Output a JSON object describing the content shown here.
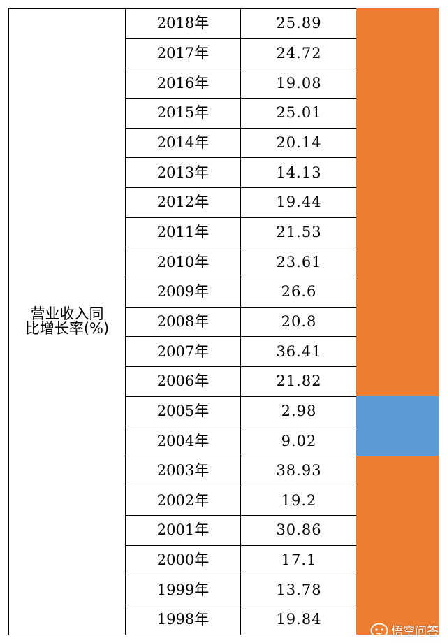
{
  "table": {
    "label_lines": [
      "营业收入同",
      "比增长率(%)"
    ],
    "rows": [
      {
        "year": "2018年",
        "value": "25.89"
      },
      {
        "year": "2017年",
        "value": "24.72"
      },
      {
        "year": "2016年",
        "value": "19.08"
      },
      {
        "year": "2015年",
        "value": "25.01"
      },
      {
        "year": "2014年",
        "value": "20.14"
      },
      {
        "year": "2013年",
        "value": "14.13"
      },
      {
        "year": "2012年",
        "value": "19.44"
      },
      {
        "year": "2011年",
        "value": "21.53"
      },
      {
        "year": "2010年",
        "value": "23.61"
      },
      {
        "year": "2009年",
        "value": "26.6"
      },
      {
        "year": "2008年",
        "value": "20.8"
      },
      {
        "year": "2007年",
        "value": "36.41"
      },
      {
        "year": "2006年",
        "value": "21.82"
      },
      {
        "year": "2005年",
        "value": "2.98"
      },
      {
        "year": "2004年",
        "value": "9.02"
      },
      {
        "year": "2003年",
        "value": "38.93"
      },
      {
        "year": "2002年",
        "value": "19.2"
      },
      {
        "year": "2001年",
        "value": "30.86"
      },
      {
        "year": "2000年",
        "value": "17.1"
      },
      {
        "year": "1999年",
        "value": "13.78"
      },
      {
        "year": "1998年",
        "value": "19.84"
      }
    ]
  },
  "highlight": {
    "segments": [
      {
        "first_row": 0,
        "last_row": 12,
        "color": "#ed7d31"
      },
      {
        "first_row": 13,
        "last_row": 14,
        "color": "#5b9bd5"
      },
      {
        "first_row": 15,
        "last_row": 20,
        "color": "#ed7d31"
      }
    ]
  },
  "watermark": {
    "text": "悟空问答",
    "icon": "wukong-logo-icon"
  }
}
